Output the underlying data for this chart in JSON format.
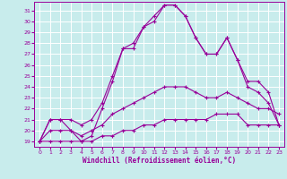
{
  "xlabel": "Windchill (Refroidissement éolien,°C)",
  "background_color": "#c8ecec",
  "line_color": "#990099",
  "xlim": [
    -0.5,
    23.5
  ],
  "ylim": [
    18.5,
    31.8
  ],
  "xticks": [
    0,
    1,
    2,
    3,
    4,
    5,
    6,
    7,
    8,
    9,
    10,
    11,
    12,
    13,
    14,
    15,
    16,
    17,
    18,
    19,
    20,
    21,
    22,
    23
  ],
  "yticks": [
    19,
    20,
    21,
    22,
    23,
    24,
    25,
    26,
    27,
    28,
    29,
    30,
    31
  ],
  "hours": [
    0,
    1,
    2,
    3,
    4,
    5,
    6,
    7,
    8,
    9,
    10,
    11,
    12,
    13,
    14,
    15,
    16,
    17,
    18,
    19,
    20,
    21,
    22,
    23
  ],
  "temp_actual": [
    19.0,
    21.0,
    21.0,
    20.0,
    19.0,
    19.5,
    22.0,
    24.5,
    27.5,
    27.5,
    29.5,
    30.0,
    31.5,
    31.5,
    30.5,
    28.5,
    27.0,
    27.0,
    28.5,
    26.5,
    24.0,
    23.5,
    22.5,
    20.5
  ],
  "temp_max": [
    19.0,
    21.0,
    21.0,
    21.0,
    20.5,
    21.0,
    22.5,
    25.0,
    27.5,
    28.0,
    29.5,
    30.5,
    31.5,
    31.5,
    30.5,
    28.5,
    27.0,
    27.0,
    28.5,
    26.5,
    24.5,
    24.5,
    23.5,
    20.5
  ],
  "temp_min": [
    19.0,
    19.0,
    19.0,
    19.0,
    19.0,
    19.0,
    19.5,
    19.5,
    20.0,
    20.0,
    20.5,
    20.5,
    21.0,
    21.0,
    21.0,
    21.0,
    21.0,
    21.5,
    21.5,
    21.5,
    20.5,
    20.5,
    20.5,
    20.5
  ],
  "temp_avg": [
    19.0,
    20.0,
    20.0,
    20.0,
    19.5,
    20.0,
    20.5,
    21.5,
    22.0,
    22.5,
    23.0,
    23.5,
    24.0,
    24.0,
    24.0,
    23.5,
    23.0,
    23.0,
    23.5,
    23.0,
    22.5,
    22.0,
    22.0,
    21.5
  ]
}
